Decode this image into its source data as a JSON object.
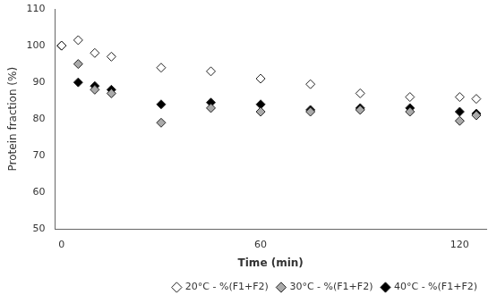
{
  "chart_data": {
    "type": "scatter",
    "xlabel": "Time (min)",
    "ylabel": "Protein fraction (%)",
    "xlim": [
      -2,
      128
    ],
    "ylim": [
      50,
      110
    ],
    "xticks": [
      0,
      60,
      120
    ],
    "yticks": [
      50,
      60,
      70,
      80,
      90,
      100,
      110
    ],
    "grid": false,
    "legend": "lower right",
    "series": [
      {
        "name": "20°C - %(F1+F2)",
        "color": "white",
        "marker": "diamond",
        "x": [
          0,
          5,
          10,
          15,
          30,
          45,
          60,
          75,
          90,
          105,
          120,
          125
        ],
        "values": [
          100,
          101.5,
          98,
          97,
          94,
          93,
          91,
          89.5,
          87,
          86,
          86,
          85.5
        ]
      },
      {
        "name": "30°C - %(F1+F2)",
        "color": "#aaaaaa",
        "marker": "diamond",
        "x": [
          0,
          5,
          10,
          15,
          30,
          45,
          60,
          75,
          90,
          105,
          120,
          125
        ],
        "values": [
          100,
          95,
          88,
          87,
          79,
          83,
          82,
          82,
          82.5,
          82,
          79.5,
          81
        ]
      },
      {
        "name": "40°C - %(F1+F2)",
        "color": "black",
        "marker": "diamond",
        "x": [
          0,
          5,
          10,
          15,
          30,
          45,
          60,
          75,
          90,
          105,
          120,
          125
        ],
        "values": [
          100,
          90,
          89,
          88,
          84,
          84.5,
          84,
          82.5,
          83,
          83,
          82,
          81.5
        ]
      }
    ]
  }
}
